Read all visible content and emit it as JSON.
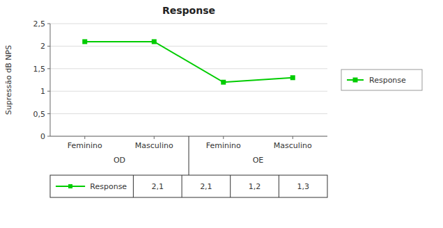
{
  "chart_data": {
    "type": "line",
    "title": "Response",
    "y_label": "Supressão dB NPS",
    "categories": [
      "Feminino",
      "Masculino",
      "Feminino",
      "Masculino"
    ],
    "groups": [
      "OD",
      "OE"
    ],
    "series": [
      {
        "name": "Response",
        "color": "#00cc00",
        "marker": "square",
        "values": [
          2.1,
          2.1,
          1.2,
          1.3
        ],
        "value_labels": [
          "2,1",
          "2,1",
          "1,2",
          "1,3"
        ]
      }
    ],
    "ylim": [
      0,
      2.5
    ],
    "yticks": [
      0,
      {
        "value": 0.5,
        "label": "0,5"
      },
      1,
      {
        "value": 1.5,
        "label": "1,5"
      },
      2,
      {
        "value": 2.5,
        "label": "2,5"
      }
    ],
    "grid": true,
    "legend": "right"
  }
}
